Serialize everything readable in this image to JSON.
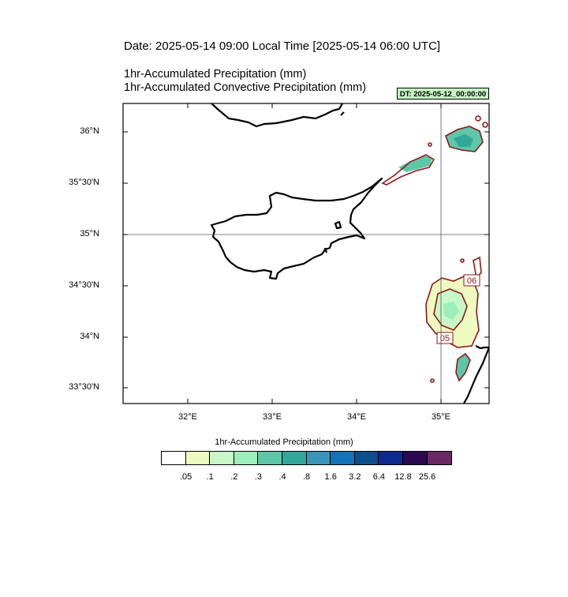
{
  "header": {
    "date_line": "Date: 2025-05-14  09:00 Local Time [2025-05-14  06:00 UTC]",
    "title_1": "1hr-Accumulated Precipitation   (mm)",
    "title_2": "1hr-Accumulated Convective Precipitation   (mm)",
    "dt_badge": "DT: 2025-05-12_00:00:00"
  },
  "map": {
    "latitude_labels": [
      "36°N",
      "35°30'N",
      "35°N",
      "34°30'N",
      "34°N",
      "33°30'N"
    ],
    "longitude_labels": [
      "32°E",
      "33°E",
      "34°E",
      "35°E"
    ],
    "contour_labels": [
      "06",
      "05"
    ],
    "coastline_color": "#000000",
    "convective_contour_color": "#8b1a1a",
    "gridline_color": "#555555"
  },
  "legend": {
    "title": "1hr-Accumulated Precipitation  (mm)",
    "colors": [
      "#ffffff",
      "#eefabf",
      "#c8f8c8",
      "#9ceebb",
      "#5dc7a8",
      "#32a89a",
      "#3a96b8",
      "#1473b8",
      "#0b4f8c",
      "#0f2a90",
      "#2a0a4f",
      "#6b2a63"
    ],
    "tick_labels": [
      ".05",
      ".1",
      ".2",
      ".3",
      ".4",
      ".8",
      "1.6",
      "3.2",
      "6.4",
      "12.8",
      "25.6"
    ]
  }
}
